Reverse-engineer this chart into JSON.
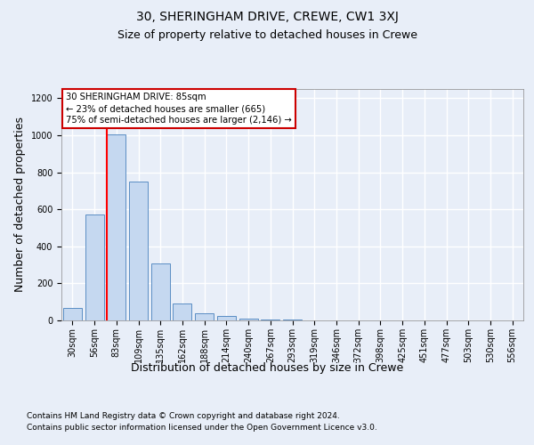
{
  "title_line1": "30, SHERINGHAM DRIVE, CREWE, CW1 3XJ",
  "title_line2": "Size of property relative to detached houses in Crewe",
  "xlabel": "Distribution of detached houses by size in Crewe",
  "ylabel": "Number of detached properties",
  "footnote1": "Contains HM Land Registry data © Crown copyright and database right 2024.",
  "footnote2": "Contains public sector information licensed under the Open Government Licence v3.0.",
  "bin_labels": [
    "30sqm",
    "56sqm",
    "83sqm",
    "109sqm",
    "135sqm",
    "162sqm",
    "188sqm",
    "214sqm",
    "240sqm",
    "267sqm",
    "293sqm",
    "319sqm",
    "346sqm",
    "372sqm",
    "398sqm",
    "425sqm",
    "451sqm",
    "477sqm",
    "503sqm",
    "530sqm",
    "556sqm"
  ],
  "bar_values": [
    65,
    570,
    1005,
    750,
    310,
    90,
    38,
    22,
    10,
    5,
    3,
    2,
    1,
    0,
    0,
    0,
    0,
    0,
    0,
    0,
    0
  ],
  "bar_color": "#c5d8f0",
  "bar_edge_color": "#5b8ec4",
  "red_line_index": 2,
  "red_line_label": "30 SHERINGHAM DRIVE: 85sqm",
  "annotation_line2": "← 23% of detached houses are smaller (665)",
  "annotation_line3": "75% of semi-detached houses are larger (2,146) →",
  "annotation_box_color": "#ffffff",
  "annotation_box_edge": "#cc0000",
  "ylim": [
    0,
    1250
  ],
  "yticks": [
    0,
    200,
    400,
    600,
    800,
    1000,
    1200
  ],
  "background_color": "#e8eef8",
  "plot_bg_color": "#e8eef8",
  "grid_color": "#ffffff",
  "title1_fontsize": 10,
  "title2_fontsize": 9,
  "axis_label_fontsize": 9,
  "tick_fontsize": 7,
  "footnote_fontsize": 6.5
}
